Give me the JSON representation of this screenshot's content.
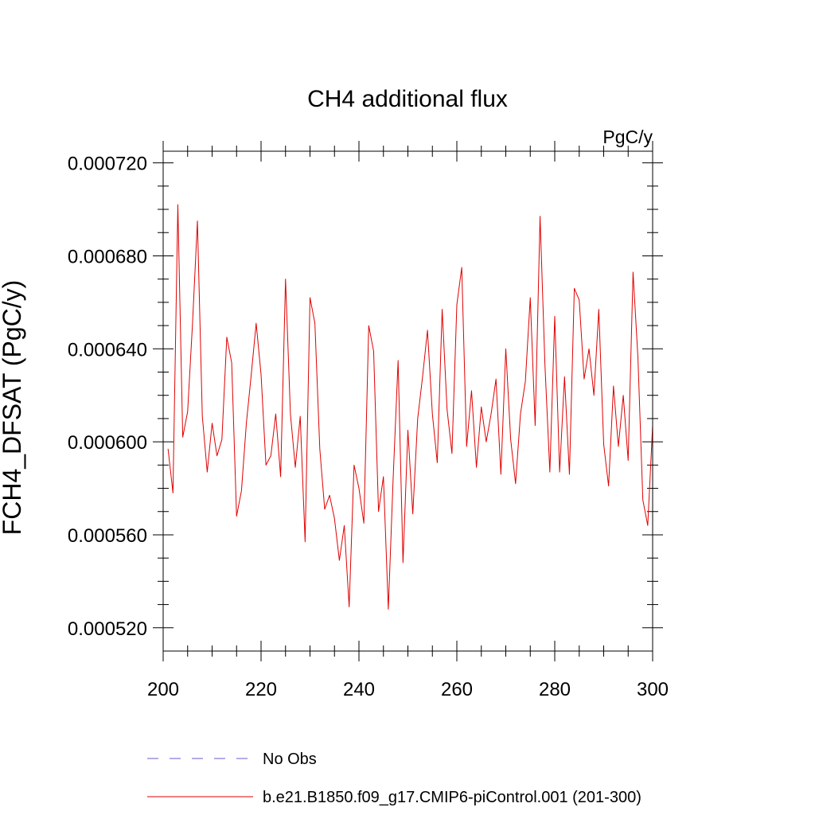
{
  "chart_data": {
    "type": "line",
    "title": "CH4 additional flux",
    "units_label": "PgC/y",
    "xlabel": "",
    "ylabel": "FCH4_DFSAT  (PgC/y)",
    "xlim": [
      200,
      300
    ],
    "ylim": [
      0.00051,
      0.000725
    ],
    "x_ticks": [
      200,
      220,
      240,
      260,
      280,
      300
    ],
    "x_tick_labels": [
      "200",
      "220",
      "240",
      "260",
      "280",
      "300"
    ],
    "y_ticks": [
      0.00052,
      0.00056,
      0.0006,
      0.00064,
      0.00068,
      0.00072
    ],
    "y_tick_labels": [
      "0.000520",
      "0.000560",
      "0.000600",
      "0.000640",
      "0.000680",
      "0.000720"
    ],
    "grid": false,
    "legend_position": "bottom",
    "legend": [
      {
        "label": "No Obs",
        "color": "#6a5acd",
        "style": "dashed"
      },
      {
        "label": "b.e21.B1850.f09_g17.CMIP6-piControl.001 (201-300)",
        "color": "#e00000",
        "style": "solid"
      }
    ],
    "series": [
      {
        "color": "#e00000",
        "x": [
          201,
          202,
          203,
          204,
          205,
          206,
          207,
          208,
          209,
          210,
          211,
          212,
          213,
          214,
          215,
          216,
          217,
          218,
          219,
          220,
          221,
          222,
          223,
          224,
          225,
          226,
          227,
          228,
          229,
          230,
          231,
          232,
          233,
          234,
          235,
          236,
          237,
          238,
          239,
          240,
          241,
          242,
          243,
          244,
          245,
          246,
          247,
          248,
          249,
          250,
          251,
          252,
          253,
          254,
          255,
          256,
          257,
          258,
          259,
          260,
          261,
          262,
          263,
          264,
          265,
          266,
          267,
          268,
          269,
          270,
          271,
          272,
          273,
          274,
          275,
          276,
          277,
          278,
          279,
          280,
          281,
          282,
          283,
          284,
          285,
          286,
          287,
          288,
          289,
          290,
          291,
          292,
          293,
          294,
          295,
          296,
          297,
          298,
          299,
          300
        ],
        "values": [
          0.000597,
          0.000578,
          0.000702,
          0.000602,
          0.000613,
          0.000651,
          0.000695,
          0.000611,
          0.000587,
          0.000608,
          0.000594,
          0.000601,
          0.000645,
          0.000634,
          0.000568,
          0.000579,
          0.000608,
          0.000629,
          0.000651,
          0.000629,
          0.00059,
          0.000594,
          0.000612,
          0.000585,
          0.00067,
          0.000612,
          0.000589,
          0.000611,
          0.000557,
          0.000662,
          0.000651,
          0.000597,
          0.000571,
          0.000577,
          0.000567,
          0.000549,
          0.000564,
          0.000529,
          0.00059,
          0.00058,
          0.000565,
          0.00065,
          0.000639,
          0.00057,
          0.000585,
          0.000528,
          0.000585,
          0.000635,
          0.000548,
          0.000605,
          0.000569,
          0.00061,
          0.000628,
          0.000648,
          0.000612,
          0.000591,
          0.000657,
          0.000614,
          0.000595,
          0.000659,
          0.000675,
          0.000598,
          0.000622,
          0.000589,
          0.000615,
          0.0006,
          0.000612,
          0.000627,
          0.000586,
          0.00064,
          0.000601,
          0.000582,
          0.000612,
          0.000626,
          0.000662,
          0.000607,
          0.000697,
          0.000633,
          0.000587,
          0.000654,
          0.000587,
          0.000628,
          0.000586,
          0.000666,
          0.000661,
          0.000627,
          0.00064,
          0.00062,
          0.000657,
          0.000599,
          0.000581,
          0.000624,
          0.000598,
          0.00062,
          0.000592,
          0.000673,
          0.000636,
          0.000575,
          0.000564,
          0.000607
        ]
      }
    ]
  }
}
